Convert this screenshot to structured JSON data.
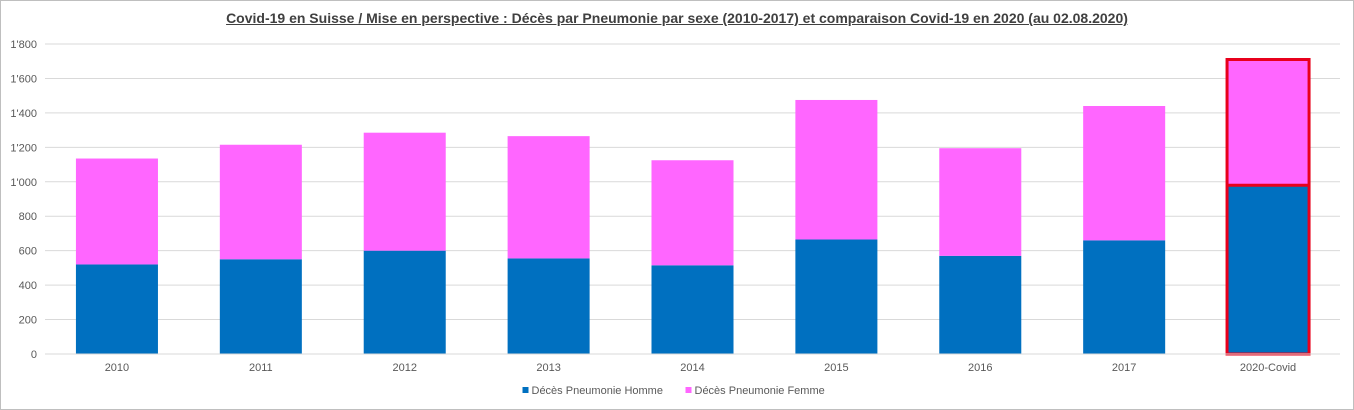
{
  "chart_data": {
    "type": "bar",
    "stacked": true,
    "title": "Covid-19 en Suisse / Mise en perspective : Décès par Pneumonie par sexe (2010-2017)  et comparaison  Covid-19 en 2020 (au 02.08.2020)",
    "xlabel": "",
    "ylabel": "",
    "ylim": [
      0,
      1800
    ],
    "y_ticks": [
      "0",
      "200",
      "400",
      "600",
      "800",
      "1'000",
      "1'200",
      "1'400",
      "1'600",
      "1'800"
    ],
    "grid": true,
    "legend_position": "bottom",
    "categories": [
      "2010",
      "2011",
      "2012",
      "2013",
      "2014",
      "2015",
      "2016",
      "2017",
      "2020-Covid"
    ],
    "highlighted_category": "2020-Covid",
    "highlight_color": "#e8001c",
    "series": [
      {
        "name": "Décès Pneumonie Homme",
        "color": "#0070c0",
        "values": [
          520,
          550,
          600,
          555,
          515,
          665,
          570,
          660,
          980
        ]
      },
      {
        "name": "Décès Pneumonie Femme",
        "color": "#ff66ff",
        "values": [
          615,
          665,
          685,
          710,
          610,
          810,
          625,
          780,
          730
        ]
      }
    ]
  }
}
